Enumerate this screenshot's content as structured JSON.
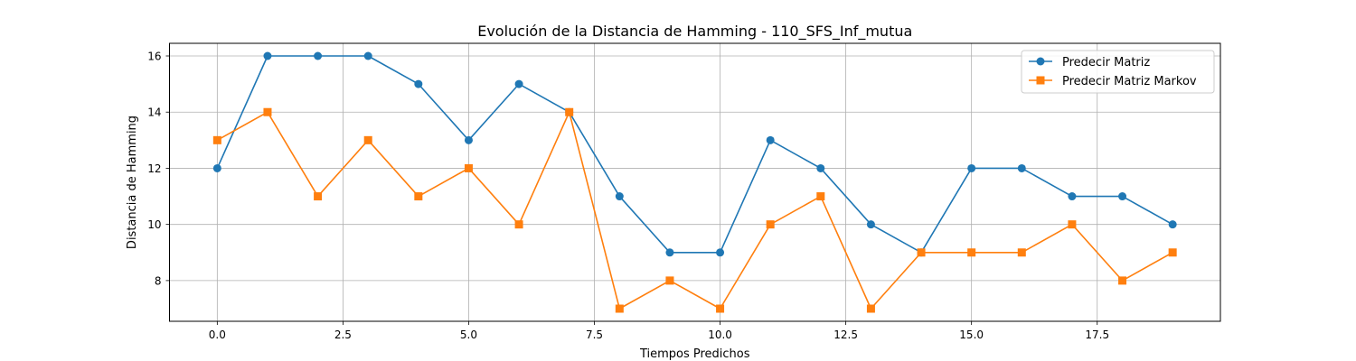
{
  "chart_data": {
    "type": "line",
    "title": "Evolución de la Distancia de Hamming - 110_SFS_Inf_mutua",
    "xlabel": "Tiempos Predichos",
    "ylabel": "Distancia de Hamming",
    "xlim": [
      -0.95,
      19.95
    ],
    "ylim": [
      6.55,
      16.45
    ],
    "xticks": [
      0,
      2.5,
      5,
      7.5,
      10,
      12.5,
      15,
      17.5
    ],
    "xtick_labels": [
      "0.0",
      "2.5",
      "5.0",
      "7.5",
      "10.0",
      "12.5",
      "15.0",
      "17.5"
    ],
    "yticks": [
      8,
      10,
      12,
      14,
      16
    ],
    "ytick_labels": [
      "8",
      "10",
      "12",
      "14",
      "16"
    ],
    "grid": true,
    "legend_position": "top-right",
    "x": [
      0,
      1,
      2,
      3,
      4,
      5,
      6,
      7,
      8,
      9,
      10,
      11,
      12,
      13,
      14,
      15,
      16,
      17,
      18,
      19
    ],
    "series": [
      {
        "name": "Predecir Matriz",
        "color": "#1f77b4",
        "marker": "circle",
        "values": [
          12,
          16,
          16,
          16,
          15,
          13,
          15,
          14,
          11,
          9,
          9,
          13,
          12,
          10,
          9,
          12,
          12,
          11,
          11,
          10
        ]
      },
      {
        "name": "Predecir Matriz Markov",
        "color": "#ff7f0e",
        "marker": "square",
        "values": [
          13,
          14,
          11,
          13,
          11,
          12,
          10,
          14,
          7,
          8,
          7,
          10,
          11,
          7,
          9,
          9,
          9,
          10,
          8,
          9
        ]
      }
    ]
  }
}
